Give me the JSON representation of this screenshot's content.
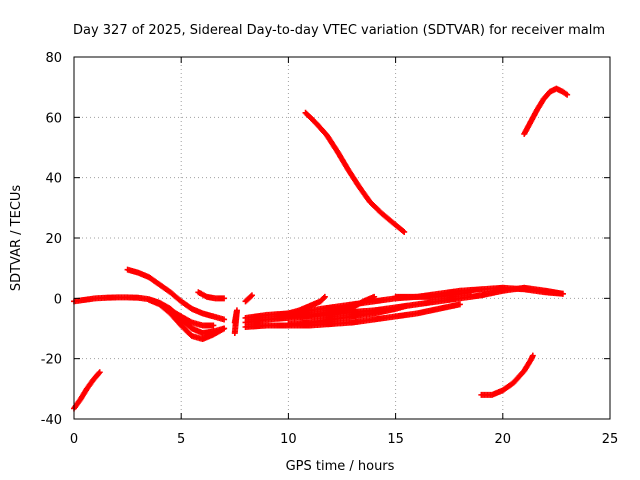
{
  "chart_data": {
    "type": "scatter",
    "title": "Day 327 of 2025, Sidereal Day-to-day VTEC variation (SDTVAR) for receiver malm",
    "xlabel": "GPS time / hours",
    "ylabel": "SDTVAR / TECUs",
    "xlim": [
      0,
      25
    ],
    "ylim": [
      -40,
      80
    ],
    "x_ticks": [
      0,
      5,
      10,
      15,
      20,
      25
    ],
    "x_tick_labels": [
      "0",
      "5",
      "10",
      "15",
      "20",
      "25"
    ],
    "y_ticks": [
      -40,
      -20,
      0,
      20,
      40,
      60,
      80
    ],
    "y_tick_labels": [
      "-40",
      "-20",
      "0",
      "20",
      "40",
      "60",
      "80"
    ],
    "grid": true,
    "legend": "none",
    "marker": "plus",
    "color": "#ff0000",
    "series": [
      {
        "name": "trace-1",
        "points": [
          [
            0.0,
            -36.5
          ],
          [
            0.3,
            -33.5
          ],
          [
            0.6,
            -30.0
          ],
          [
            0.9,
            -27.0
          ],
          [
            1.2,
            -24.5
          ]
        ]
      },
      {
        "name": "trace-2",
        "points": [
          [
            0.0,
            -1.0
          ],
          [
            0.5,
            -0.5
          ],
          [
            1.0,
            0.0
          ],
          [
            1.5,
            0.2
          ],
          [
            2.0,
            0.3
          ],
          [
            2.5,
            0.3
          ],
          [
            3.0,
            0.2
          ],
          [
            3.5,
            -0.3
          ],
          [
            4.0,
            -1.5
          ],
          [
            4.5,
            -3.5
          ],
          [
            5.0,
            -7.0
          ],
          [
            5.5,
            -10.0
          ],
          [
            6.0,
            -11.5
          ],
          [
            6.5,
            -11.0
          ],
          [
            7.0,
            -10.0
          ]
        ]
      },
      {
        "name": "trace-3",
        "points": [
          [
            4.0,
            -2.0
          ],
          [
            4.5,
            -5.0
          ],
          [
            5.0,
            -9.0
          ],
          [
            5.5,
            -12.5
          ],
          [
            6.0,
            -13.5
          ],
          [
            6.5,
            -12.0
          ],
          [
            7.0,
            -10.0
          ]
        ]
      },
      {
        "name": "trace-4",
        "points": [
          [
            2.5,
            9.5
          ],
          [
            3.0,
            8.5
          ],
          [
            3.5,
            7.0
          ],
          [
            4.0,
            4.5
          ],
          [
            4.5,
            2.0
          ],
          [
            5.0,
            -1.0
          ],
          [
            5.5,
            -3.5
          ],
          [
            6.0,
            -5.0
          ],
          [
            6.5,
            -6.0
          ],
          [
            7.0,
            -7.0
          ]
        ]
      },
      {
        "name": "trace-5",
        "points": [
          [
            3.5,
            -0.5
          ],
          [
            4.0,
            -2.0
          ],
          [
            4.5,
            -4.0
          ],
          [
            5.0,
            -6.0
          ],
          [
            5.5,
            -8.0
          ],
          [
            6.0,
            -9.0
          ],
          [
            6.5,
            -9.0
          ]
        ]
      },
      {
        "name": "trace-6",
        "points": [
          [
            5.8,
            2.0
          ],
          [
            6.2,
            0.5
          ],
          [
            6.6,
            0.0
          ],
          [
            7.0,
            0.0
          ]
        ]
      },
      {
        "name": "trace-7",
        "points": [
          [
            7.5,
            -8.0
          ],
          [
            7.6,
            -4.0
          ],
          [
            7.5,
            -11.5
          ]
        ]
      },
      {
        "name": "trace-8",
        "points": [
          [
            8.0,
            -1.0
          ],
          [
            8.3,
            1.0
          ]
        ]
      },
      {
        "name": "trace-9",
        "points": [
          [
            8.0,
            -9.5
          ],
          [
            9.0,
            -9.0
          ],
          [
            10.0,
            -9.0
          ],
          [
            11.0,
            -9.0
          ],
          [
            12.0,
            -8.5
          ],
          [
            13.0,
            -8.0
          ],
          [
            14.0,
            -7.0
          ],
          [
            15.0,
            -6.0
          ],
          [
            16.0,
            -5.0
          ],
          [
            17.0,
            -3.5
          ],
          [
            18.0,
            -2.0
          ]
        ]
      },
      {
        "name": "trace-10",
        "points": [
          [
            8.0,
            -8.0
          ],
          [
            9.0,
            -7.0
          ],
          [
            10.0,
            -6.5
          ],
          [
            11.0,
            -6.0
          ],
          [
            12.0,
            -5.5
          ],
          [
            13.0,
            -4.5
          ],
          [
            14.0,
            -4.0
          ],
          [
            15.0,
            -3.0
          ],
          [
            16.0,
            -2.0
          ],
          [
            17.0,
            -1.0
          ],
          [
            18.0,
            0.0
          ],
          [
            19.0,
            1.0
          ],
          [
            20.0,
            2.5
          ],
          [
            21.0,
            3.5
          ],
          [
            22.0,
            2.5
          ],
          [
            22.8,
            1.5
          ]
        ]
      },
      {
        "name": "trace-11",
        "points": [
          [
            8.0,
            -6.5
          ],
          [
            9.0,
            -5.5
          ],
          [
            10.0,
            -5.0
          ],
          [
            11.0,
            -4.0
          ],
          [
            12.0,
            -3.0
          ],
          [
            13.0,
            -2.0
          ],
          [
            14.0,
            -1.0
          ],
          [
            15.0,
            0.0
          ],
          [
            16.0,
            0.5
          ],
          [
            17.0,
            1.5
          ],
          [
            18.0,
            2.5
          ],
          [
            19.0,
            3.0
          ],
          [
            20.0,
            3.5
          ],
          [
            21.0,
            3.0
          ],
          [
            22.0,
            2.0
          ],
          [
            22.8,
            1.5
          ]
        ]
      },
      {
        "name": "trace-12",
        "points": [
          [
            9.5,
            -6.0
          ],
          [
            10.0,
            -5.0
          ],
          [
            10.5,
            -4.0
          ],
          [
            11.0,
            -2.5
          ],
          [
            11.5,
            -1.0
          ],
          [
            11.7,
            0.5
          ]
        ]
      },
      {
        "name": "trace-13",
        "points": [
          [
            10.0,
            -6.0
          ],
          [
            11.0,
            -5.5
          ],
          [
            12.0,
            -4.5
          ],
          [
            13.0,
            -3.0
          ],
          [
            13.5,
            -1.0
          ],
          [
            14.0,
            0.5
          ]
        ]
      },
      {
        "name": "trace-14",
        "points": [
          [
            10.0,
            -8.5
          ],
          [
            11.0,
            -8.0
          ],
          [
            12.0,
            -7.0
          ],
          [
            13.0,
            -6.0
          ],
          [
            14.0,
            -5.0
          ],
          [
            15.0,
            -3.5
          ],
          [
            15.5,
            -2.5
          ]
        ]
      },
      {
        "name": "trace-15",
        "points": [
          [
            15.0,
            0.5
          ],
          [
            16.0,
            0.5
          ],
          [
            17.0,
            0.5
          ],
          [
            18.0,
            1.5
          ],
          [
            18.5,
            2.0
          ]
        ]
      },
      {
        "name": "trace-16",
        "points": [
          [
            10.8,
            61.5
          ],
          [
            11.3,
            58.0
          ],
          [
            11.8,
            54.0
          ],
          [
            12.3,
            48.5
          ],
          [
            12.8,
            42.5
          ],
          [
            13.3,
            37.0
          ],
          [
            13.8,
            32.0
          ],
          [
            14.3,
            28.5
          ],
          [
            14.8,
            25.5
          ],
          [
            15.4,
            22.0
          ]
        ]
      },
      {
        "name": "trace-17",
        "points": [
          [
            19.0,
            -32.0
          ],
          [
            19.5,
            -32.0
          ],
          [
            20.0,
            -30.5
          ],
          [
            20.5,
            -28.0
          ],
          [
            21.0,
            -24.0
          ],
          [
            21.3,
            -20.5
          ],
          [
            21.4,
            -19.0
          ]
        ]
      },
      {
        "name": "trace-18",
        "points": [
          [
            21.0,
            54.5
          ],
          [
            21.3,
            58.5
          ],
          [
            21.6,
            62.5
          ],
          [
            21.9,
            66.0
          ],
          [
            22.2,
            68.5
          ],
          [
            22.5,
            69.5
          ],
          [
            22.8,
            68.5
          ],
          [
            23.0,
            67.5
          ]
        ]
      }
    ]
  }
}
